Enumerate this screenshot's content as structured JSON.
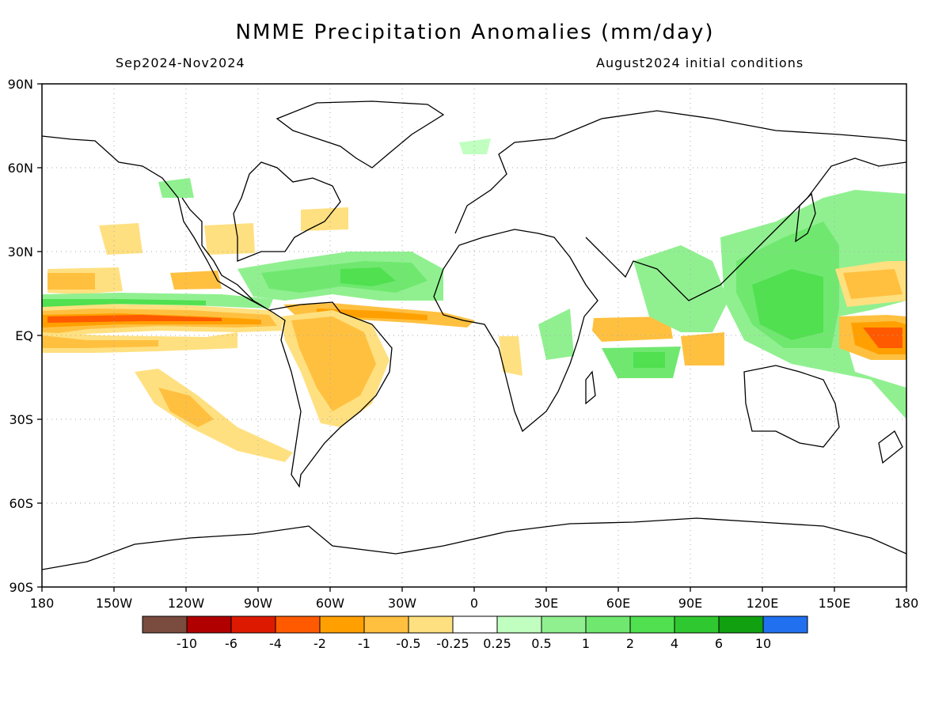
{
  "title": "NMME Precipitation Anomalies (mm/day)",
  "subtitle_left": "Sep2024-Nov2024",
  "subtitle_right": "August2024 initial conditions",
  "map": {
    "projection": "equirectangular",
    "lon_range": [
      -180,
      180
    ],
    "lat_range": [
      -90,
      90
    ],
    "grid": "dotted",
    "lat_tick_labels": [
      "90N",
      "60N",
      "30N",
      "EQ",
      "30S",
      "60S",
      "90S"
    ],
    "lon_tick_labels": [
      "180",
      "150W",
      "120W",
      "90W",
      "60W",
      "30W",
      "0",
      "30E",
      "60E",
      "90E",
      "120E",
      "150E",
      "180"
    ]
  },
  "colorbar": {
    "colors": [
      "#7a4b3f",
      "#b00000",
      "#dd1a00",
      "#ff5a00",
      "#ffa000",
      "#ffc040",
      "#ffe080",
      "#ffffff",
      "#c0ffc0",
      "#90f090",
      "#70e870",
      "#50e050",
      "#30c830",
      "#10a010",
      "#2070f0"
    ],
    "labels": [
      "-10",
      "-6",
      "-4",
      "-2",
      "-1",
      "-0.5",
      "-0.25",
      "0.25",
      "0.5",
      "1",
      "2",
      "4",
      "6",
      "10"
    ]
  },
  "anomaly_regions": [
    {
      "desc": "equatorial central-east Pacific dry band",
      "lon": [
        -180,
        -75
      ],
      "lat": [
        -2,
        5
      ],
      "value": -2
    },
    {
      "desc": "Amazon / northern Brazil dry",
      "lon": [
        -70,
        -35
      ],
      "lat": [
        -25,
        5
      ],
      "value": -1
    },
    {
      "desc": "tropical Atlantic ITCZ dry",
      "lon": [
        -55,
        -10
      ],
      "lat": [
        3,
        8
      ],
      "value": -2
    },
    {
      "desc": "western Pacific warm pool wet",
      "lon": [
        95,
        180
      ],
      "lat": [
        -10,
        25
      ],
      "value": 2
    },
    {
      "desc": "central-west Pacific near dateline dry",
      "lon": [
        155,
        180
      ],
      "lat": [
        -5,
        5
      ],
      "value": -2
    },
    {
      "desc": "western Indian Ocean dry",
      "lon": [
        40,
        65
      ],
      "lat": [
        -2,
        5
      ],
      "value": -1
    },
    {
      "desc": "Caribbean / tropical North Atlantic wet",
      "lon": [
        -90,
        -15
      ],
      "lat": [
        10,
        30
      ],
      "value": 1
    },
    {
      "desc": "South Pacific convergence zone dry",
      "lon": [
        -150,
        -110
      ],
      "lat": [
        -35,
        -10
      ],
      "value": -0.5
    }
  ]
}
